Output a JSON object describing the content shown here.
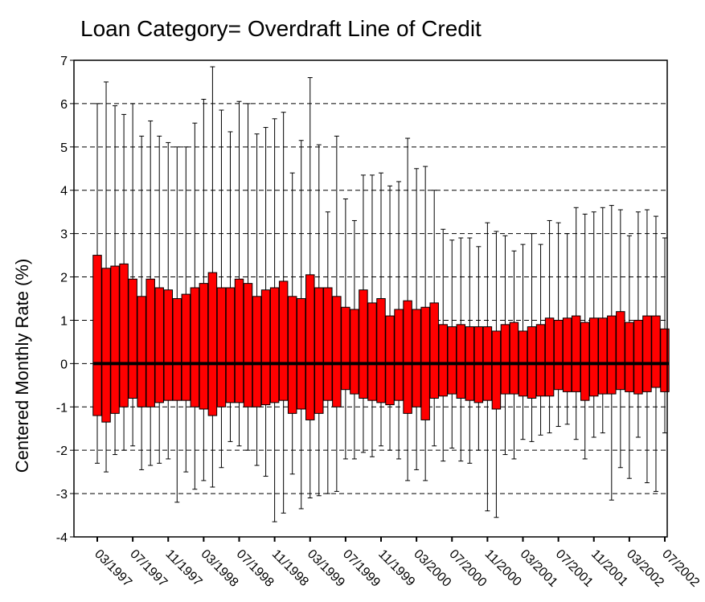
{
  "chart_data": {
    "type": "box",
    "title": "Loan Category= Overdraft Line of Credit",
    "y_label": "Centered Monthly Rate (%)",
    "color": "#ff0000",
    "grid": true,
    "ylim": [
      -4,
      7
    ],
    "yticks": [
      -4,
      -3,
      -2,
      -1,
      0,
      1,
      2,
      3,
      4,
      5,
      6,
      7
    ],
    "categories": [
      "03/1997",
      null,
      null,
      null,
      "07/1997",
      null,
      null,
      null,
      "11/1997",
      null,
      null,
      null,
      "03/1998",
      null,
      null,
      null,
      "07/1998",
      null,
      null,
      null,
      "11/1998",
      null,
      null,
      null,
      "03/1999",
      null,
      null,
      null,
      "07/1999",
      null,
      null,
      null,
      "11/1999",
      null,
      null,
      null,
      "03/2000",
      null,
      null,
      null,
      "07/2000",
      null,
      null,
      null,
      "11/2000",
      null,
      null,
      null,
      "03/2001",
      null,
      null,
      null,
      "07/2001",
      null,
      null,
      null,
      "11/2001",
      null,
      null,
      null,
      "03/2002",
      null,
      null,
      null,
      "07/2002"
    ],
    "whisker_high": [
      6.0,
      6.5,
      5.95,
      5.75,
      6.0,
      5.25,
      5.6,
      5.25,
      5.1,
      5.0,
      5.0,
      5.55,
      6.1,
      6.85,
      5.85,
      5.35,
      6.05,
      6.0,
      5.3,
      5.45,
      5.65,
      5.8,
      4.4,
      5.15,
      6.6,
      5.05,
      3.5,
      5.25,
      3.8,
      3.3,
      4.35,
      4.35,
      4.4,
      4.1,
      4.2,
      5.2,
      4.5,
      4.55,
      4.0,
      3.1,
      2.85,
      2.9,
      2.9,
      2.7,
      3.25,
      3.05,
      2.95,
      2.6,
      2.75,
      3.0,
      2.75,
      3.3,
      3.25,
      3.0,
      3.6,
      3.45,
      3.5,
      3.6,
      3.65,
      3.55,
      2.95,
      3.5,
      3.55,
      3.4,
      2.9
    ],
    "q3": [
      2.5,
      2.2,
      2.25,
      2.3,
      1.95,
      1.55,
      1.95,
      1.75,
      1.7,
      1.5,
      1.6,
      1.75,
      1.85,
      2.1,
      1.75,
      1.75,
      1.95,
      1.85,
      1.55,
      1.7,
      1.75,
      1.9,
      1.55,
      1.5,
      2.05,
      1.75,
      1.75,
      1.55,
      1.3,
      1.25,
      1.7,
      1.4,
      1.5,
      1.1,
      1.25,
      1.45,
      1.25,
      1.3,
      1.4,
      0.9,
      0.85,
      0.9,
      0.85,
      0.85,
      0.85,
      0.75,
      0.9,
      0.95,
      0.75,
      0.85,
      0.9,
      1.05,
      1.0,
      1.05,
      1.1,
      0.95,
      1.05,
      1.05,
      1.1,
      1.2,
      0.95,
      1.0,
      1.1,
      1.1,
      0.8
    ],
    "median": [
      0,
      0,
      0,
      0,
      0,
      0,
      0,
      0,
      0,
      0,
      0,
      0,
      0,
      0,
      0,
      0,
      0,
      0,
      0,
      0,
      0,
      0,
      0,
      0,
      0,
      0,
      0,
      0,
      0,
      0,
      0,
      0,
      0,
      0,
      0,
      0,
      0,
      0,
      0,
      0,
      0,
      0,
      0,
      0,
      0,
      0,
      0,
      0,
      0,
      0,
      0,
      0,
      0,
      0,
      0,
      0,
      0,
      0,
      0,
      0,
      0,
      0,
      0,
      0,
      0
    ],
    "q1": [
      -1.2,
      -1.35,
      -1.15,
      -1.0,
      -0.8,
      -1.0,
      -1.0,
      -0.9,
      -0.85,
      -0.85,
      -0.85,
      -1.0,
      -1.05,
      -1.2,
      -1.0,
      -0.9,
      -0.9,
      -1.0,
      -1.0,
      -0.95,
      -0.9,
      -0.85,
      -1.15,
      -1.05,
      -1.3,
      -1.15,
      -0.85,
      -1.0,
      -0.6,
      -0.7,
      -0.8,
      -0.85,
      -0.9,
      -0.95,
      -0.85,
      -1.15,
      -1.0,
      -1.3,
      -0.8,
      -0.75,
      -0.7,
      -0.8,
      -0.85,
      -0.9,
      -0.85,
      -1.05,
      -0.7,
      -0.7,
      -0.75,
      -0.8,
      -0.75,
      -0.75,
      -0.6,
      -0.65,
      -0.65,
      -0.85,
      -0.75,
      -0.7,
      -0.7,
      -0.6,
      -0.65,
      -0.7,
      -0.65,
      -0.55,
      -0.65
    ],
    "whisker_low": [
      -2.3,
      -2.5,
      -2.1,
      -2.0,
      -1.9,
      -2.45,
      -2.35,
      -2.3,
      -2.2,
      -3.2,
      -2.5,
      -2.9,
      -2.7,
      -2.85,
      -2.4,
      -1.8,
      -1.9,
      -2.0,
      -2.35,
      -2.6,
      -3.65,
      -3.45,
      -2.55,
      -3.35,
      -3.1,
      -3.05,
      -3.0,
      -2.95,
      -2.2,
      -2.2,
      -2.05,
      -2.15,
      -1.9,
      -2.0,
      -2.2,
      -2.7,
      -2.45,
      -2.7,
      -1.9,
      -2.25,
      -1.95,
      -2.25,
      -2.3,
      -2.0,
      -3.4,
      -3.55,
      -2.1,
      -2.2,
      -1.75,
      -1.8,
      -1.65,
      -1.6,
      -1.45,
      -1.4,
      -1.75,
      -2.2,
      -1.7,
      -1.6,
      -3.15,
      -2.4,
      -2.65,
      -1.7,
      -2.75,
      -2.95,
      -1.6
    ]
  }
}
